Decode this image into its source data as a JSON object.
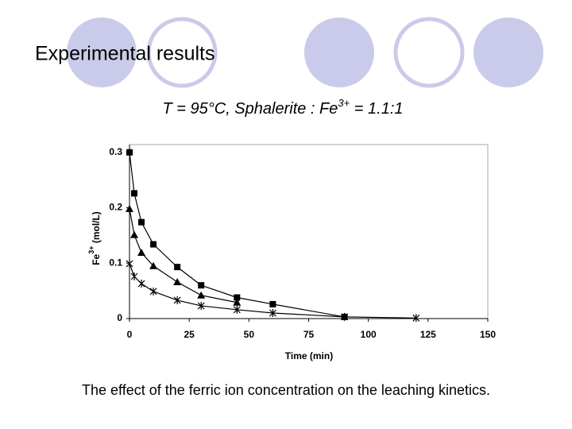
{
  "slide": {
    "title": "Experimental results",
    "subtitle": {
      "text": "T = 95°C,   Sphalerite : Fe",
      "sup": "3+",
      "suffix": " = 1.1:1"
    },
    "caption": "The effect of the ferric ion concentration on the leaching kinetics."
  },
  "chart_data": {
    "type": "line",
    "xlabel": "Time (min)",
    "ylabel": {
      "text": "Fe",
      "sup": "3+",
      "suffix": " (mol/L)"
    },
    "xlim": [
      0,
      150
    ],
    "ylim": [
      0,
      0.314
    ],
    "xticks": [
      0,
      25,
      50,
      75,
      100,
      125,
      150
    ],
    "yticks": [
      0,
      0.1,
      0.2,
      0.3
    ],
    "series": [
      {
        "marker": "square",
        "color": "#000000",
        "x": [
          0,
          2,
          5,
          10,
          20,
          30,
          45,
          60,
          90
        ],
        "values": [
          0.3,
          0.226,
          0.174,
          0.134,
          0.093,
          0.06,
          0.038,
          0.026,
          0.003
        ]
      },
      {
        "marker": "triangle",
        "color": "#000000",
        "x": [
          0,
          2,
          5,
          10,
          20,
          30,
          45
        ],
        "values": [
          0.198,
          0.151,
          0.119,
          0.095,
          0.066,
          0.042,
          0.029
        ]
      },
      {
        "marker": "star",
        "color": "#000000",
        "x": [
          0,
          2,
          5,
          10,
          20,
          30,
          45,
          60,
          90,
          120
        ],
        "values": [
          0.099,
          0.076,
          0.063,
          0.049,
          0.033,
          0.023,
          0.016,
          0.01,
          0.003,
          0.001
        ]
      }
    ]
  }
}
